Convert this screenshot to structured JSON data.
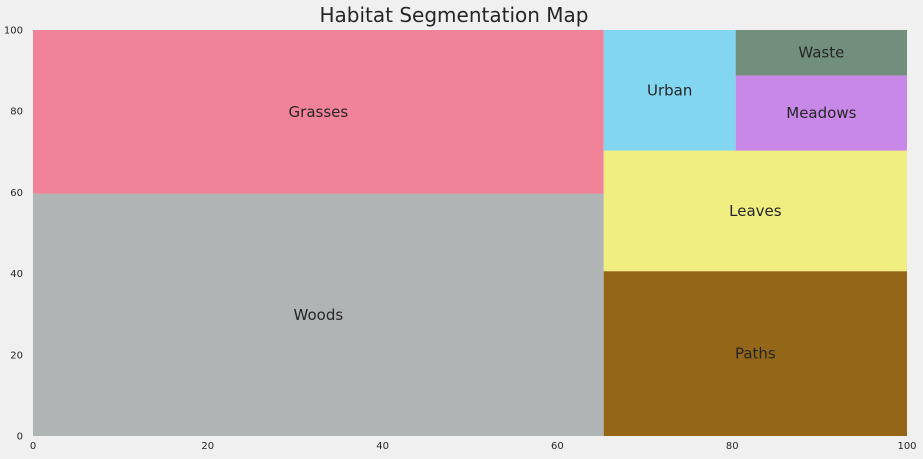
{
  "chart_data": {
    "type": "treemap",
    "title": "Habitat Segmentation Map",
    "xlim": [
      0,
      100
    ],
    "ylim": [
      0,
      100
    ],
    "x_ticks": [
      0,
      20,
      40,
      60,
      80,
      100
    ],
    "y_ticks": [
      0,
      20,
      40,
      60,
      80,
      100
    ],
    "grid": false,
    "segments": [
      {
        "label": "Woods",
        "x0": 0,
        "x1": 65.3,
        "y0": 0,
        "y1": 59.7,
        "color": "#afb4b4"
      },
      {
        "label": "Grasses",
        "x0": 0,
        "x1": 65.3,
        "y0": 59.7,
        "y1": 100,
        "color": "#f08399"
      },
      {
        "label": "Paths",
        "x0": 65.3,
        "x1": 100,
        "y0": 0,
        "y1": 40.6,
        "color": "#936717"
      },
      {
        "label": "Leaves",
        "x0": 65.3,
        "x1": 100,
        "y0": 40.6,
        "y1": 70.3,
        "color": "#f0ee80"
      },
      {
        "label": "Urban",
        "x0": 65.3,
        "x1": 80.4,
        "y0": 70.3,
        "y1": 100,
        "color": "#82d6f0"
      },
      {
        "label": "Meadows",
        "x0": 80.4,
        "x1": 100,
        "y0": 70.3,
        "y1": 88.8,
        "color": "#c788e7"
      },
      {
        "label": "Waste",
        "x0": 80.4,
        "x1": 100,
        "y0": 88.8,
        "y1": 100,
        "color": "#728f7d"
      }
    ]
  }
}
